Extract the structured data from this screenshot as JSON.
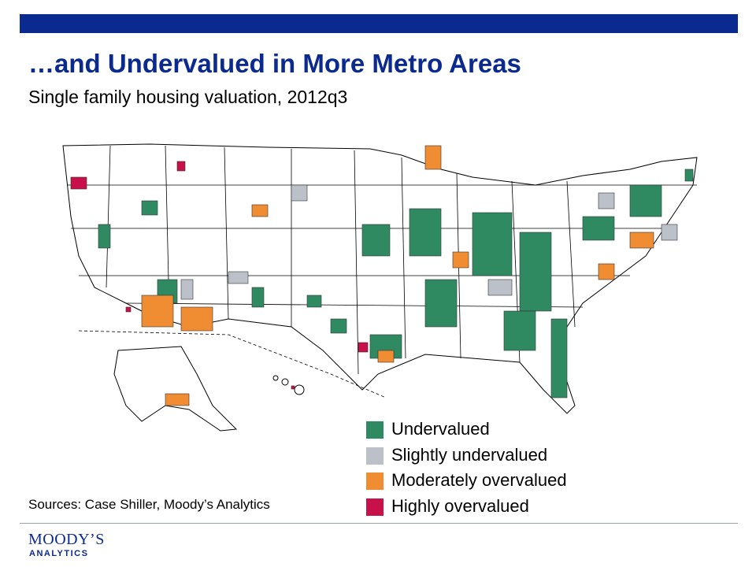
{
  "colors": {
    "brand": "#0b2a8f",
    "undervalued": "#2f8a62",
    "slightly_undervalued": "#bcc1c9",
    "moderately_overvalued": "#f08c32",
    "highly_overvalued": "#c8104a",
    "state_fill": "#ffffff",
    "state_border": "#000000"
  },
  "header": {
    "title": "…and Undervalued in More Metro Areas",
    "subtitle": "Single family housing valuation, 2012q3"
  },
  "legend": {
    "items": [
      {
        "key": "undervalued",
        "label": "Undervalued",
        "icon": "square-swatch"
      },
      {
        "key": "slightly_undervalued",
        "label": "Slightly undervalued",
        "icon": "square-swatch"
      },
      {
        "key": "moderately_overvalued",
        "label": "Moderately overvalued",
        "icon": "square-swatch"
      },
      {
        "key": "highly_overvalued",
        "label": "Highly overvalued",
        "icon": "square-swatch"
      }
    ]
  },
  "footer": {
    "sources": "Sources: Case Shiller, Moody’s Analytics",
    "logo_line1": "MOODY’S",
    "logo_line2": "ANALYTICS"
  }
}
